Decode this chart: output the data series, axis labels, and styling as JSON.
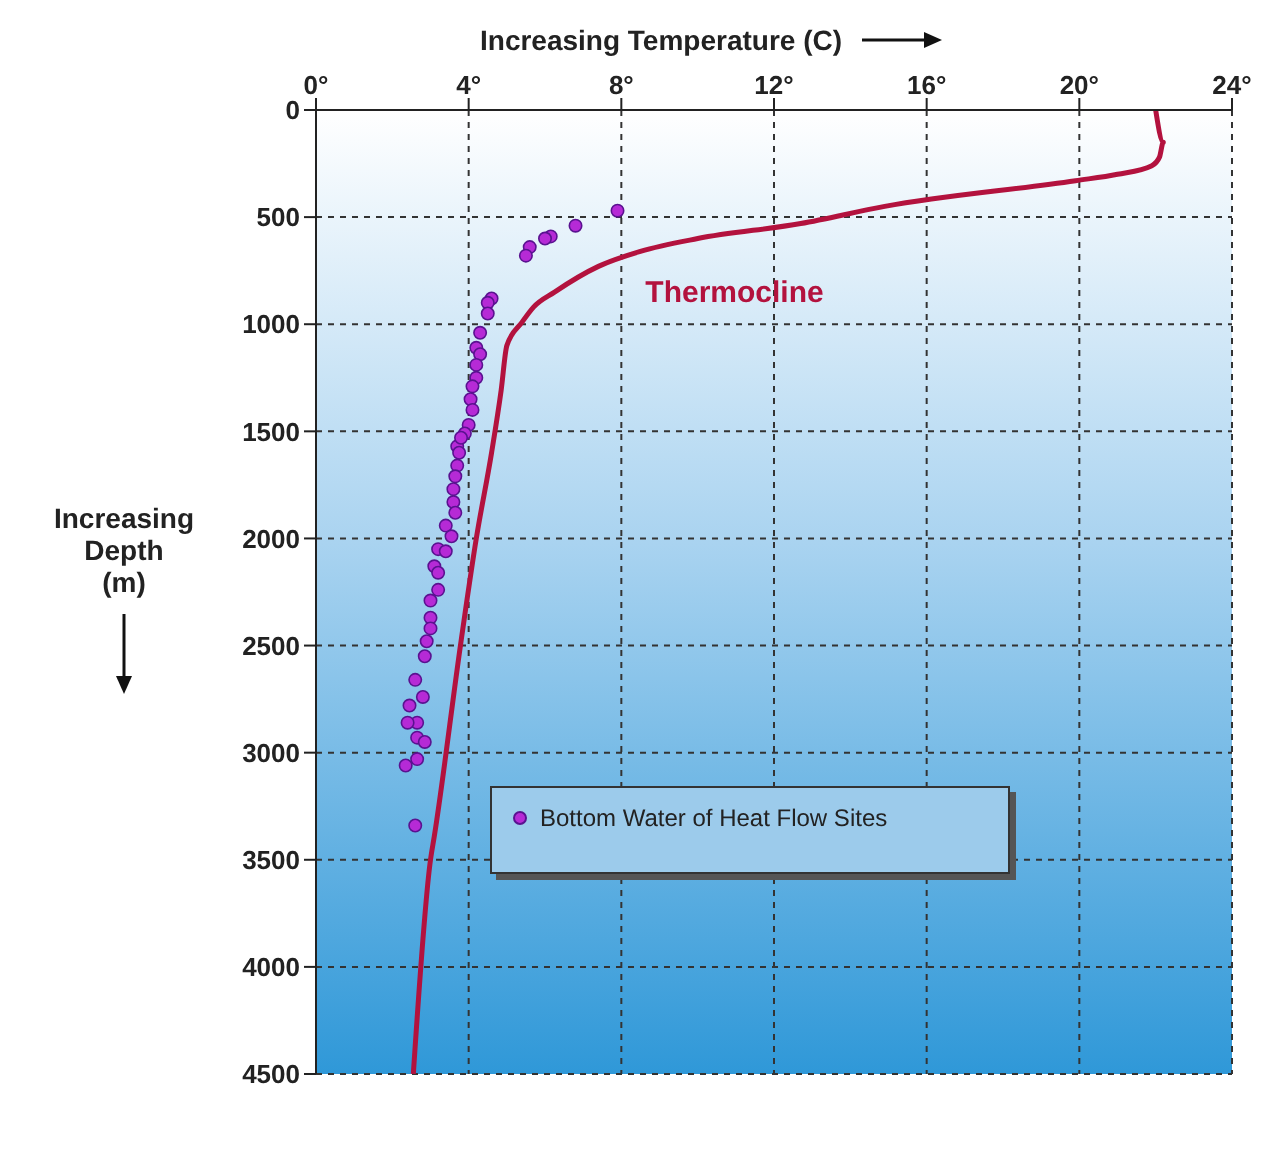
{
  "chart_data": {
    "type": "scatter",
    "xlabel": "Increasing Temperature (C)",
    "ylabel": "Increasing Depth (m)",
    "xlim": [
      0,
      24
    ],
    "xticks": [
      {
        "value": 0,
        "label": "0°"
      },
      {
        "value": 4,
        "label": "4°"
      },
      {
        "value": 8,
        "label": "8°"
      },
      {
        "value": 12,
        "label": "12°"
      },
      {
        "value": 16,
        "label": "16°"
      },
      {
        "value": 20,
        "label": "20°"
      },
      {
        "value": 24,
        "label": "24°"
      }
    ],
    "ylim": [
      4500,
      0
    ],
    "yticks": [
      0,
      500,
      1000,
      1500,
      2000,
      2500,
      3000,
      3500,
      4000,
      4500
    ],
    "grid": true,
    "legend": "center",
    "marker": "circle",
    "series": [
      {
        "name": "Thermocline",
        "type": "line",
        "color": "#b3123e",
        "line_style": "solid",
        "marker": "none",
        "x": [
          22.0,
          22.2,
          22.1,
          21.9,
          21.0,
          19.9,
          14.9,
          12.7,
          10.0,
          8.5,
          7.4,
          6.25,
          5.7,
          5.4,
          5.0,
          4.85,
          4.6,
          4.2,
          3.8,
          3.1,
          3.0,
          2.55
        ],
        "values": [
          0,
          150,
          220,
          260,
          300,
          330,
          450,
          530,
          600,
          660,
          730,
          850,
          920,
          990,
          1100,
          1310,
          1600,
          2000,
          2480,
          3390,
          3500,
          4500
        ]
      },
      {
        "name": "Bottom Water of Heat Flow Sites",
        "color": "#b62ad6",
        "x": [
          7.9,
          6.8,
          6.15,
          6.0,
          5.6,
          5.5,
          4.6,
          4.5,
          4.5,
          4.3,
          4.2,
          4.3,
          4.2,
          4.2,
          4.1,
          4.05,
          4.1,
          4.0,
          3.9,
          3.7,
          3.8,
          3.75,
          3.7,
          3.65,
          3.6,
          3.6,
          3.65,
          3.4,
          3.55,
          3.2,
          3.4,
          3.1,
          3.2,
          3.2,
          3.0,
          3.0,
          3.0,
          2.9,
          2.85,
          2.6,
          2.8,
          2.45,
          2.65,
          2.4,
          2.65,
          2.85,
          2.65,
          2.35,
          2.6
        ],
        "values": [
          470,
          540,
          590,
          600,
          640,
          680,
          880,
          900,
          950,
          1040,
          1110,
          1140,
          1190,
          1250,
          1290,
          1350,
          1400,
          1470,
          1510,
          1570,
          1530,
          1600,
          1660,
          1710,
          1770,
          1830,
          1880,
          1940,
          1990,
          2050,
          2060,
          2130,
          2160,
          2240,
          2290,
          2370,
          2420,
          2480,
          2550,
          2660,
          2740,
          2780,
          2860,
          2860,
          2930,
          2950,
          3030,
          3060,
          3340
        ]
      }
    ]
  }
}
